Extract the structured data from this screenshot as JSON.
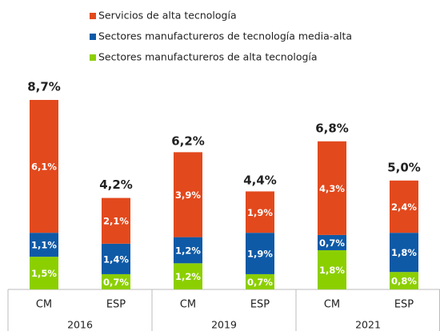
{
  "chart_data": {
    "type": "stacked_bar",
    "categories": [
      "CM",
      "ESP",
      "CM",
      "ESP",
      "CM",
      "ESP"
    ],
    "groups": [
      "2016",
      "2019",
      "2021"
    ],
    "series": [
      {
        "name": "Servicios de alta tecnología",
        "color": "#e2491d",
        "values": [
          6.1,
          2.1,
          3.9,
          1.9,
          4.3,
          2.4
        ],
        "value_labels": [
          "6,1%",
          "2,1%",
          "3,9%",
          "1,9%",
          "4,3%",
          "2,4%"
        ]
      },
      {
        "name": "Sectores manufactureros de tecnología media-alta",
        "color": "#0e5aa7",
        "values": [
          1.1,
          1.4,
          1.2,
          1.9,
          0.7,
          1.8
        ],
        "value_labels": [
          "1,1%",
          "1,4%",
          "1,2%",
          "1,9%",
          "0,7%",
          "1,8%"
        ]
      },
      {
        "name": "Sectores manufactureros de alta tecnología",
        "color": "#8ccf00",
        "values": [
          1.5,
          0.7,
          1.2,
          0.7,
          1.8,
          0.8
        ],
        "value_labels": [
          "1,5%",
          "0,7%",
          "1,2%",
          "0,7%",
          "1,8%",
          "0,8%"
        ]
      }
    ],
    "totals": {
      "values": [
        8.7,
        4.2,
        6.2,
        4.4,
        6.8,
        5.0
      ],
      "value_labels": [
        "8,7%",
        "4,2%",
        "6,2%",
        "4,4%",
        "6,8%",
        "5,0%"
      ]
    }
  }
}
